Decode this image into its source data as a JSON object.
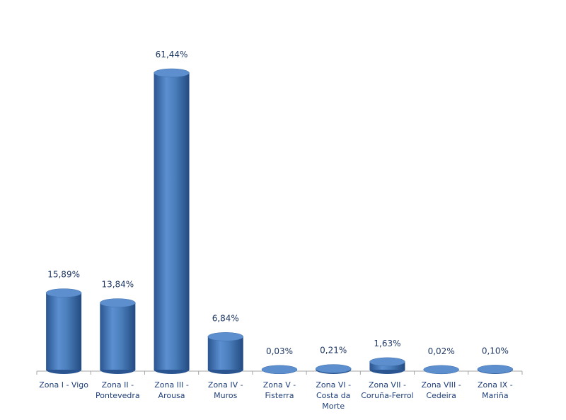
{
  "chart_data": {
    "type": "bar",
    "categories": [
      "Zona I - Vigo",
      "Zona II - Pontevedra",
      "Zona III - Arousa",
      "Zona IV - Muros",
      "Zona V - Fisterra",
      "Zona VI - Costa da Morte",
      "Zona VII - Coruña-Ferrol",
      "Zona VIII - Cedeira",
      "Zona IX - Mariña"
    ],
    "values": [
      15.89,
      13.84,
      61.44,
      6.84,
      0.03,
      0.21,
      1.63,
      0.02,
      0.1
    ],
    "value_labels": [
      "15,89%",
      "13,84%",
      "61,44%",
      "6,84%",
      "0,03%",
      "0,21%",
      "1,63%",
      "0,02%",
      "0,10%"
    ],
    "color": "#4a7ebb"
  }
}
